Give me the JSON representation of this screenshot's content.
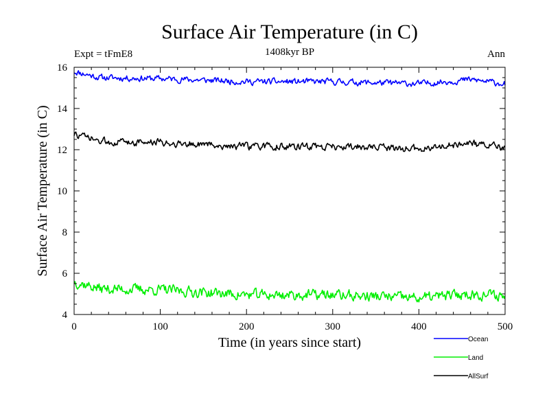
{
  "chart_data": {
    "type": "line",
    "title": "Surface Air Temperature (in C)",
    "subtitle": "1408kyr BP",
    "left_label": "Expt = tFmE8",
    "right_label": "Ann",
    "xlabel": "Time (in years since start)",
    "ylabel": "Surface Air Temperature (in C)",
    "xlim": [
      0,
      500
    ],
    "ylim": [
      4,
      16
    ],
    "x_ticks": [
      "0",
      "100",
      "200",
      "300",
      "400",
      "500"
    ],
    "y_ticks": [
      "4",
      "6",
      "8",
      "10",
      "12",
      "14",
      "16"
    ],
    "x_tick_values": [
      0,
      100,
      200,
      300,
      400,
      500
    ],
    "y_tick_values": [
      4,
      6,
      8,
      10,
      12,
      14,
      16
    ],
    "series": [
      {
        "name": "Ocean",
        "color": "#0000ff",
        "start": 15.7,
        "end": 15.25,
        "mean": 15.35,
        "noise": 0.13,
        "seed": 11,
        "keypoints": [
          [
            0,
            15.8
          ],
          [
            30,
            15.5
          ],
          [
            100,
            15.45
          ],
          [
            200,
            15.3
          ],
          [
            300,
            15.3
          ],
          [
            400,
            15.2
          ],
          [
            460,
            15.4
          ],
          [
            500,
            15.2
          ]
        ]
      },
      {
        "name": "Land",
        "color": "#00ee00",
        "start": 5.6,
        "end": 4.9,
        "mean": 4.95,
        "noise": 0.22,
        "seed": 37,
        "keypoints": [
          [
            0,
            5.6
          ],
          [
            30,
            5.25
          ],
          [
            100,
            5.2
          ],
          [
            200,
            4.95
          ],
          [
            300,
            4.95
          ],
          [
            400,
            4.8
          ],
          [
            460,
            5.0
          ],
          [
            500,
            4.9
          ]
        ]
      },
      {
        "name": "AllSurf",
        "color": "#000000",
        "start": 12.7,
        "end": 12.1,
        "mean": 12.2,
        "noise": 0.15,
        "seed": 73,
        "keypoints": [
          [
            0,
            12.75
          ],
          [
            30,
            12.4
          ],
          [
            100,
            12.35
          ],
          [
            200,
            12.15
          ],
          [
            300,
            12.15
          ],
          [
            400,
            12.05
          ],
          [
            460,
            12.3
          ],
          [
            500,
            12.1
          ]
        ]
      }
    ],
    "legend_position": "bottom-right"
  }
}
